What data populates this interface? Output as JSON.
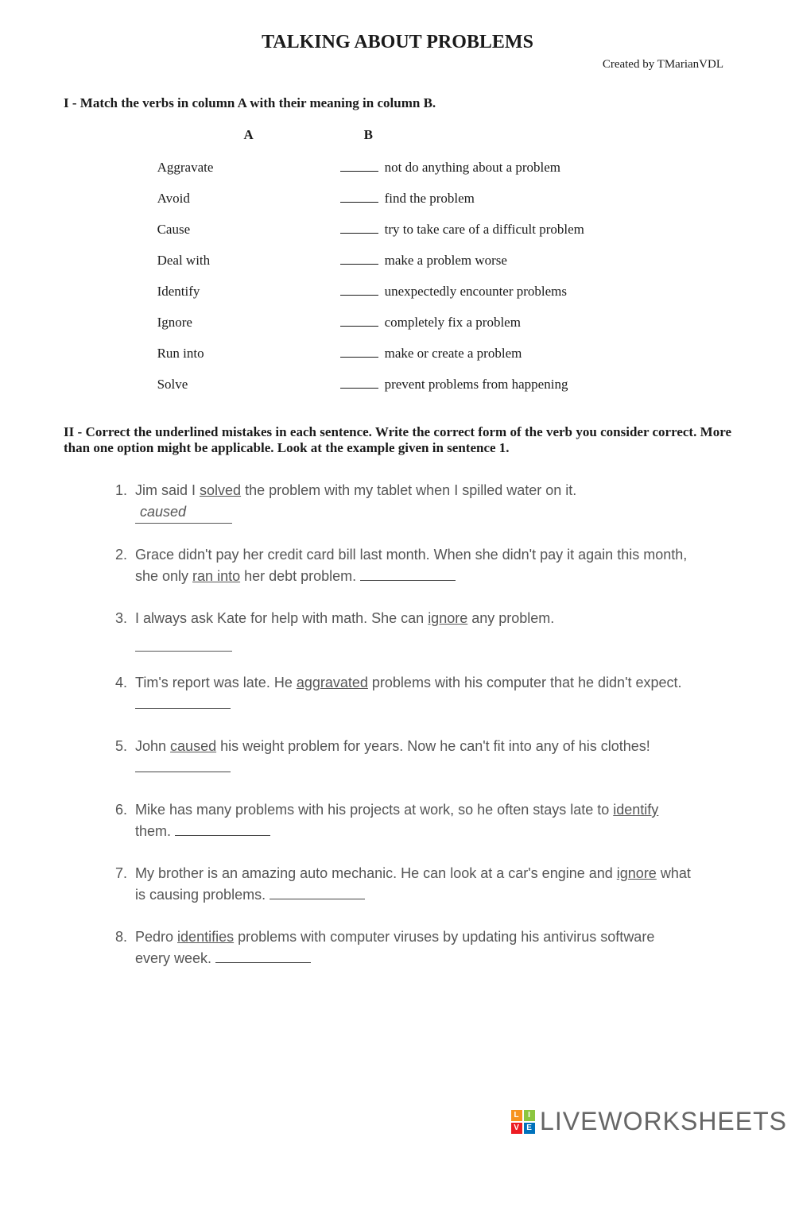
{
  "title": "TALKING ABOUT PROBLEMS",
  "byline": "Created by TMarianVDL",
  "section1": {
    "heading": "I - Match the verbs in column A with their meaning in column B.",
    "colA_label": "A",
    "colB_label": "B",
    "rows": [
      {
        "a": "Aggravate",
        "b": "not do anything about a problem"
      },
      {
        "a": "Avoid",
        "b": "find the problem"
      },
      {
        "a": "Cause",
        "b": "try to take care of a difficult  problem"
      },
      {
        "a": "Deal with",
        "b": "make a problem worse"
      },
      {
        "a": "Identify",
        "b": "unexpectedly encounter problems"
      },
      {
        "a": "Ignore",
        "b": "completely fix a problem"
      },
      {
        "a": "Run into",
        "b": "make or create a problem"
      },
      {
        "a": "Solve",
        "b": "prevent problems from happening"
      }
    ]
  },
  "section2": {
    "heading": "II - Correct the underlined mistakes in each sentence. Write the correct form of the verb you consider correct. More than one option might be applicable. Look at the example given in sentence 1.",
    "sentences": [
      {
        "num": "1.",
        "pre": "Jim said I ",
        "u": "solved",
        "post": " the problem with my tablet when I spilled water on it.",
        "answer": "caused",
        "blank_after": false,
        "blank_below": true
      },
      {
        "num": "2.",
        "pre": "Grace didn't pay her credit card bill last month. When she didn't pay it again this month, she only ",
        "u": "ran into",
        "post": " her debt problem.  ",
        "answer": "",
        "blank_after": true,
        "blank_below": false
      },
      {
        "num": "3.",
        "pre": "I always ask Kate for help with math. She can ",
        "u": "ignore",
        "post": " any problem.",
        "answer": "",
        "blank_after": false,
        "blank_below": true
      },
      {
        "num": "4.",
        "pre": "Tim's report was late. He ",
        "u": "aggravated",
        "post": " problems with his computer that he didn't expect.  ",
        "answer": "",
        "blank_after": true,
        "blank_below": false
      },
      {
        "num": "5.",
        "pre": "John ",
        "u": "caused",
        "post": " his weight problem for years. Now he can't fit into any of his clothes!  ",
        "answer": "",
        "blank_after": true,
        "blank_below": false
      },
      {
        "num": "6.",
        "pre": "Mike has many problems with his projects at work, so he often stays late to ",
        "u": "identify",
        "post": " them.  ",
        "answer": "",
        "blank_after": true,
        "blank_below": false
      },
      {
        "num": "7.",
        "pre": "My brother is an amazing auto mechanic. He can look at a car's engine and ",
        "u": "ignore",
        "post": " what is causing problems.  ",
        "answer": "",
        "blank_after": true,
        "blank_below": false
      },
      {
        "num": "8.",
        "pre": "Pedro ",
        "u": "identifies",
        "post": " problems with computer viruses by updating his antivirus software every week.  ",
        "answer": "",
        "blank_after": true,
        "blank_below": false
      }
    ]
  },
  "watermark": {
    "text": "LIVEWORKSHEETS",
    "logo": [
      "L",
      "I",
      "V",
      "E"
    ]
  }
}
